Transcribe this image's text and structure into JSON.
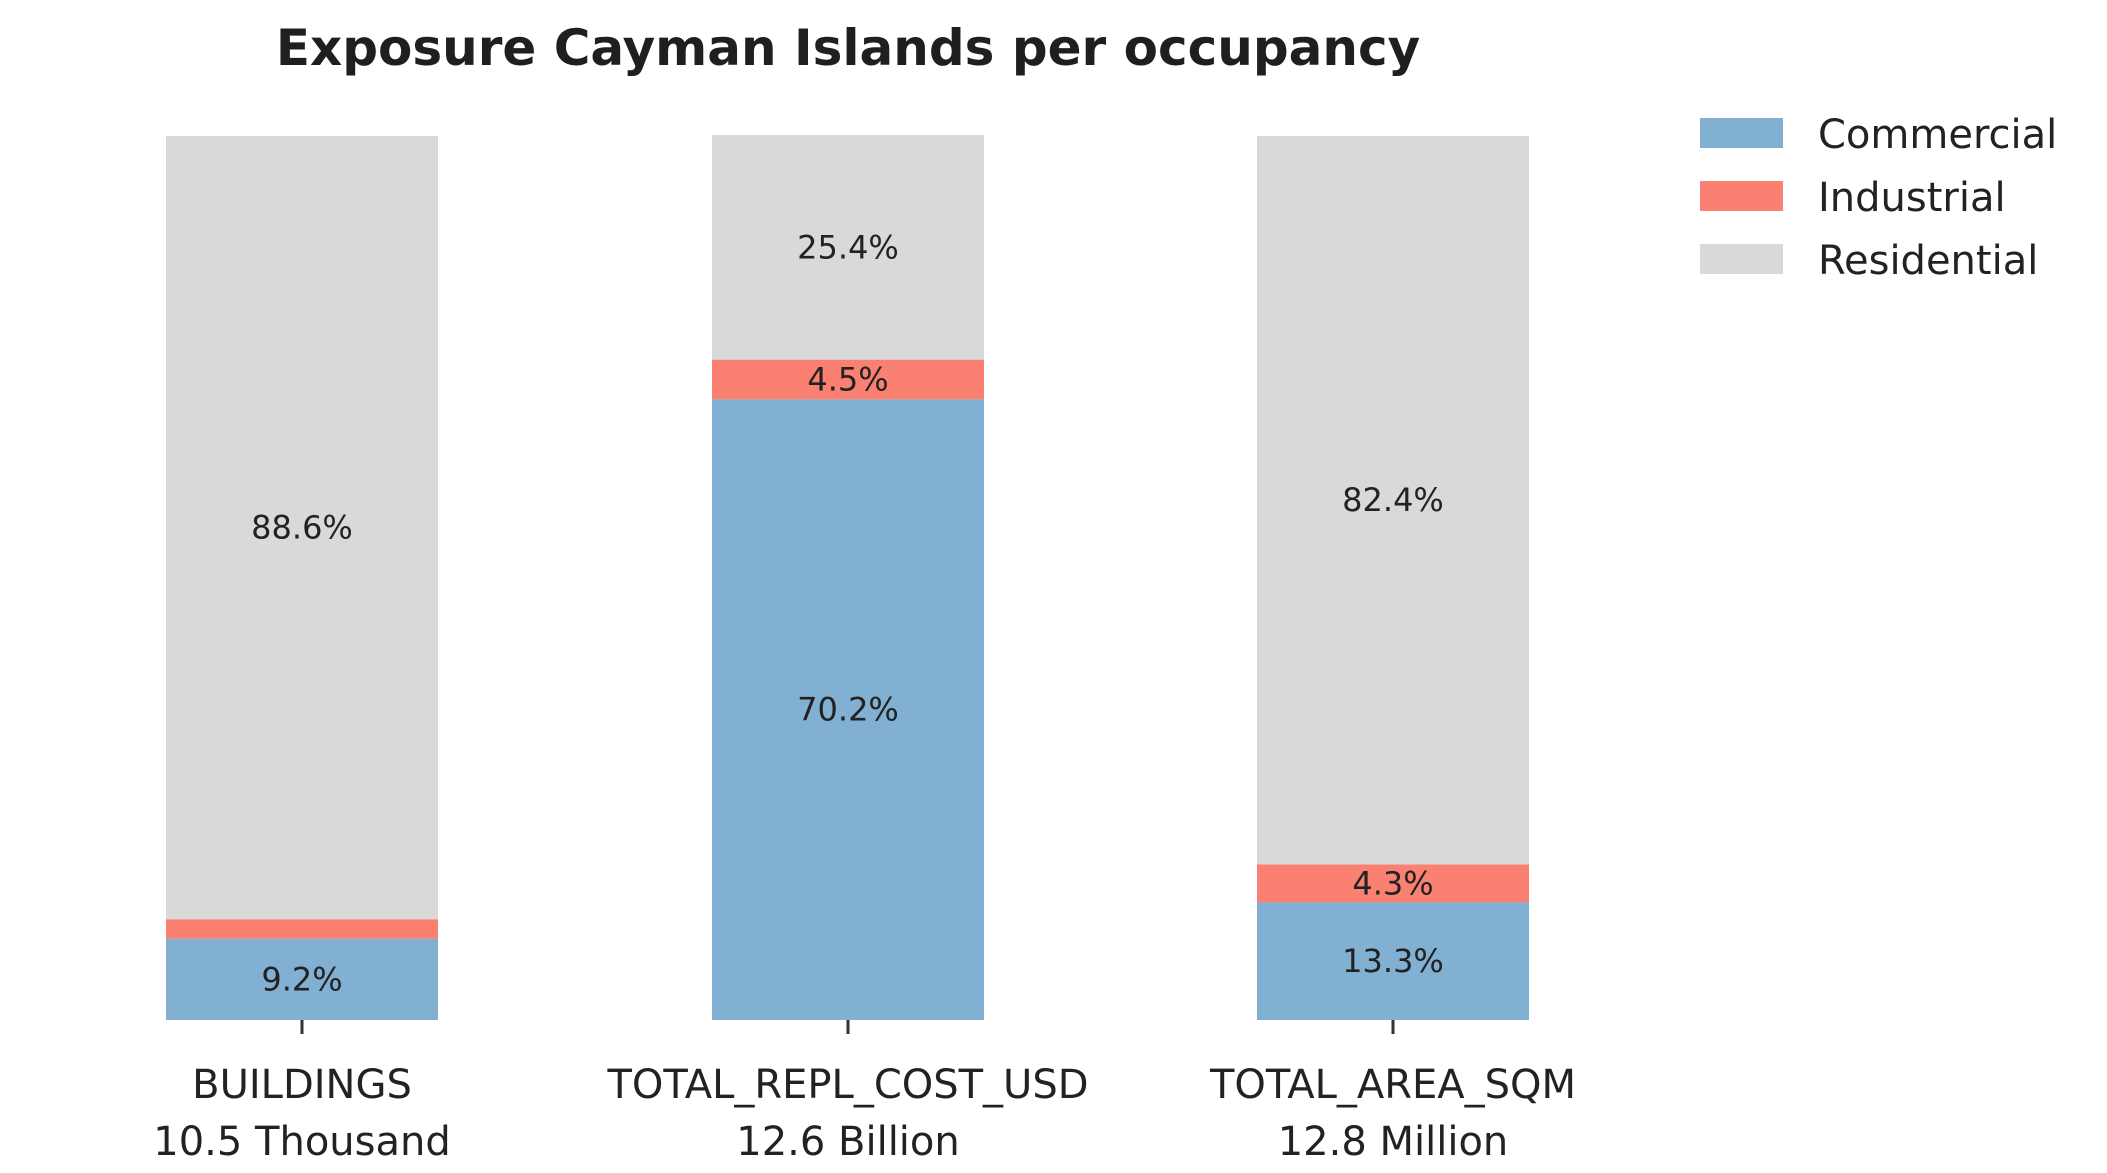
{
  "chart_data": {
    "type": "bar",
    "stacked": true,
    "normalized_percent": true,
    "title": "Exposure Cayman Islands per occupancy",
    "categories": [
      "BUILDINGS",
      "TOTAL_REPL_COST_USD",
      "TOTAL_AREA_SQM"
    ],
    "category_totals": [
      "10.5 Thousand",
      "12.6 Billion",
      "12.8 Million"
    ],
    "ylim": [
      0,
      100
    ],
    "grid": false,
    "legend_position": "top-right outside",
    "series": [
      {
        "name": "Commercial",
        "color": "#81b0d3",
        "values": [
          9.2,
          70.2,
          13.3
        ],
        "labels": [
          "9.2%",
          "70.2%",
          "13.3%"
        ]
      },
      {
        "name": "Industrial",
        "color": "#fa8072",
        "values": [
          2.2,
          4.5,
          4.3
        ],
        "labels": [
          "",
          "4.5%",
          "4.3%"
        ]
      },
      {
        "name": "Residential",
        "color": "#d9d9d9",
        "values": [
          88.6,
          25.4,
          82.4
        ],
        "labels": [
          "88.6%",
          "25.4%",
          "82.4%"
        ]
      }
    ]
  }
}
